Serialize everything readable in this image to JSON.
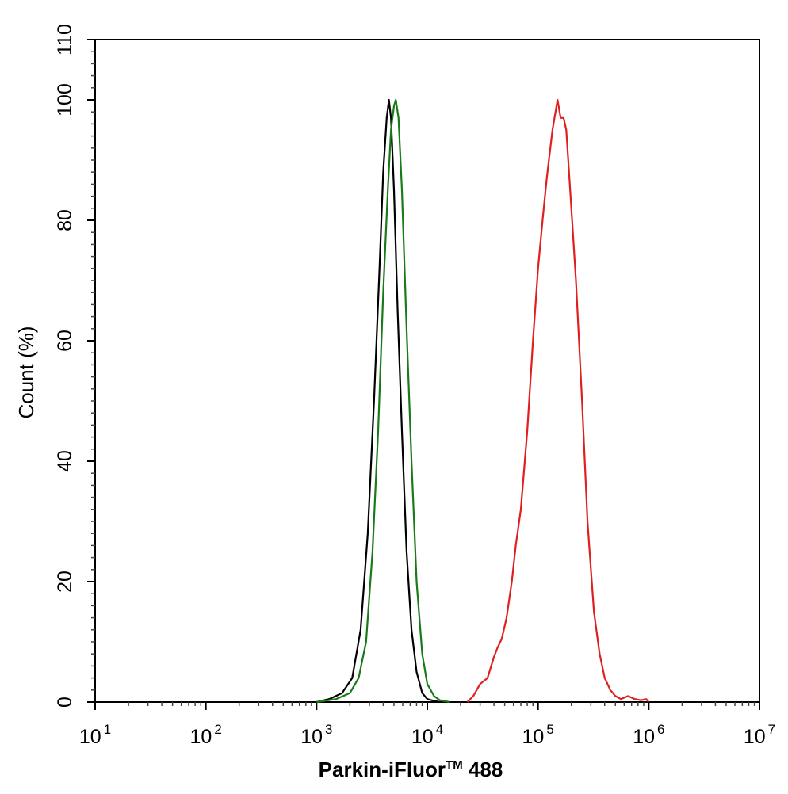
{
  "chart_data": {
    "type": "line",
    "xscale": "log",
    "xlim": [
      10,
      10000000
    ],
    "ylim": [
      0,
      110
    ],
    "xticks": [
      {
        "base": "10",
        "exp": "1"
      },
      {
        "base": "10",
        "exp": "2"
      },
      {
        "base": "10",
        "exp": "3"
      },
      {
        "base": "10",
        "exp": "4"
      },
      {
        "base": "10",
        "exp": "5"
      },
      {
        "base": "10",
        "exp": "6"
      },
      {
        "base": "10",
        "exp": "7"
      }
    ],
    "yticks": [
      "0",
      "20",
      "40",
      "60",
      "80",
      "100",
      "110"
    ],
    "xlabel": {
      "main": "Parkin-iFluor",
      "tm": "TM",
      "suffix": " 488"
    },
    "ylabel": "Count  (%)",
    "grid": false,
    "legend": "none",
    "series": [
      {
        "color": "#000000",
        "x": [
          1000,
          1300,
          1700,
          2100,
          2500,
          2900,
          3300,
          3700,
          4000,
          4300,
          4500,
          4700,
          5000,
          5400,
          5900,
          6500,
          7200,
          8000,
          9000,
          10000,
          11500,
          13000
        ],
        "y": [
          0,
          0.5,
          1.5,
          4,
          12,
          28,
          50,
          72,
          88,
          97,
          100,
          97,
          85,
          65,
          45,
          25,
          12,
          5,
          1.5,
          0.5,
          0.2,
          0
        ]
      },
      {
        "color": "#1a7a1a",
        "x": [
          1000,
          1500,
          2000,
          2400,
          2800,
          3200,
          3600,
          4000,
          4400,
          4700,
          5000,
          5200,
          5500,
          5900,
          6500,
          7200,
          8000,
          9000,
          10000,
          11500,
          13000,
          16000
        ],
        "y": [
          0,
          0.5,
          1.5,
          4,
          10,
          25,
          45,
          68,
          85,
          95,
          99,
          100,
          97,
          85,
          62,
          40,
          20,
          8,
          3,
          1,
          0.3,
          0
        ]
      },
      {
        "color": "#e02020",
        "x": [
          23000,
          26000,
          30000,
          35000,
          40000,
          43000,
          47000,
          52000,
          58000,
          63000,
          70000,
          80000,
          90000,
          100000,
          110000,
          120000,
          135000,
          150000,
          160000,
          170000,
          180000,
          200000,
          220000,
          250000,
          280000,
          320000,
          360000,
          400000,
          450000,
          500000,
          560000,
          650000,
          750000,
          850000,
          950000,
          1000000
        ],
        "y": [
          0,
          1,
          3,
          4,
          7.5,
          9,
          10.5,
          14,
          20,
          26,
          32,
          45,
          60,
          72,
          80,
          87,
          95,
          100,
          97,
          97,
          95,
          82,
          70,
          50,
          30,
          15,
          8,
          4,
          2,
          1,
          0.5,
          1,
          0.5,
          0.3,
          0.5,
          0
        ]
      }
    ]
  }
}
